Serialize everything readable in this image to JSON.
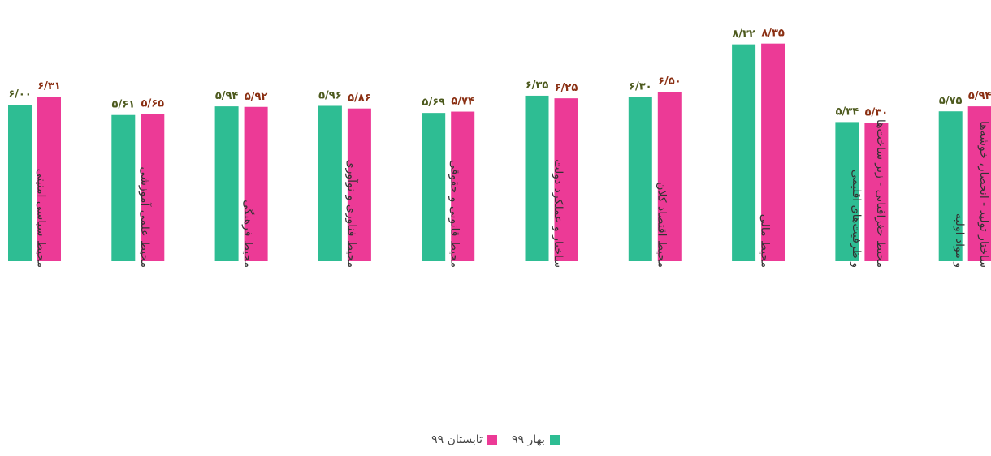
{
  "chart_data": {
    "type": "bar",
    "categories": [
      "محیط سیاسی امنیتی",
      "محیط علمی آموزشی",
      "محیط فرهنگی",
      "محیط فناوری و نوآوری",
      "محیط قانونی و حقوقی",
      "ساختار و عملکرد دولت",
      "محیط اقتصاد کلان",
      "محیط مالی",
      "محیط جغرافیایی - زیر ساخت‌ها|و ظرفیت‌های اقلیمی",
      "ساختار تولید - انحصار، خوشه‌ها|و مواد اولیه"
    ],
    "series": [
      {
        "name": "بهار ۹۹",
        "color": "#2ebd93",
        "label_color": "#4d5a1e",
        "values": [
          6.0,
          5.61,
          5.94,
          5.96,
          5.69,
          6.35,
          6.3,
          8.32,
          5.34,
          5.75
        ],
        "labels": [
          "۶/۰۰",
          "۵/۶۱",
          "۵/۹۴",
          "۵/۹۶",
          "۵/۶۹",
          "۶/۳۵",
          "۶/۳۰",
          "۸/۳۲",
          "۵/۳۴",
          "۵/۷۵"
        ]
      },
      {
        "name": "تابستان ۹۹",
        "color": "#ec3a96",
        "label_color": "#8a2f12",
        "values": [
          6.31,
          5.65,
          5.92,
          5.86,
          5.74,
          6.25,
          6.5,
          8.35,
          5.3,
          5.94
        ],
        "labels": [
          "۶/۳۱",
          "۵/۶۵",
          "۵/۹۲",
          "۵/۸۶",
          "۵/۷۴",
          "۶/۲۵",
          "۶/۵۰",
          "۸/۳۵",
          "۵/۳۰",
          "۵/۹۴"
        ]
      }
    ],
    "ylim": [
      0,
      9
    ],
    "grid": false,
    "legend_position": "bottom"
  }
}
